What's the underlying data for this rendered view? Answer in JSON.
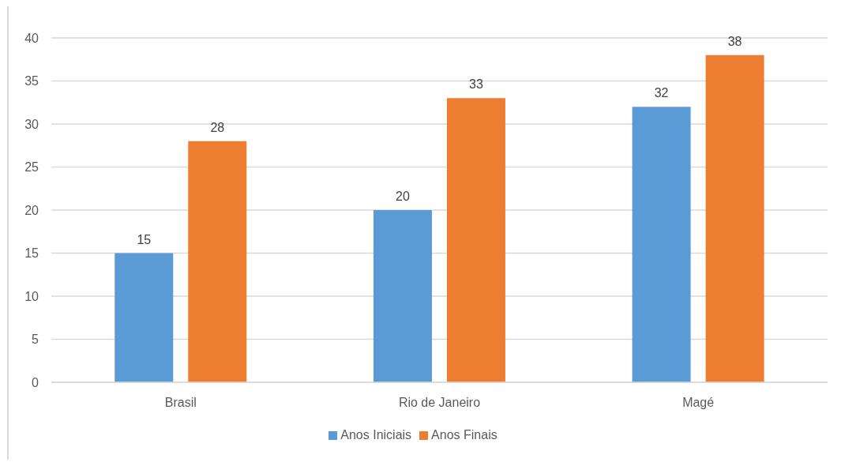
{
  "chart_data": {
    "type": "bar",
    "categories": [
      "Brasil",
      "Rio de Janeiro",
      "Magé"
    ],
    "series": [
      {
        "name": "Anos Iniciais",
        "color": "#5b9bd5",
        "values": [
          15,
          20,
          32
        ]
      },
      {
        "name": "Anos Finais",
        "color": "#ed7d31",
        "values": [
          28,
          33,
          38
        ]
      }
    ],
    "ylim": [
      0,
      40
    ],
    "yticks": [
      0,
      5,
      10,
      15,
      20,
      25,
      30,
      35,
      40
    ],
    "grid": "y",
    "legend": "bottom",
    "data_labels": true
  }
}
